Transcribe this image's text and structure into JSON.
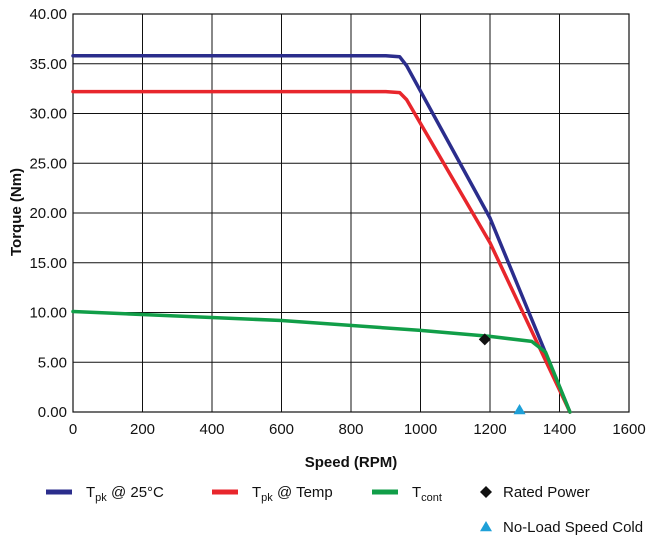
{
  "chart_data": {
    "type": "line",
    "title": "",
    "xlabel": "Speed (RPM)",
    "ylabel": "Torque (Nm)",
    "xlim": [
      0,
      1600
    ],
    "ylim": [
      0,
      40
    ],
    "x_ticks": [
      "0",
      "200",
      "400",
      "600",
      "800",
      "1000",
      "1200",
      "1400",
      "1600"
    ],
    "y_ticks": [
      "0.00",
      "5.00",
      "10.00",
      "15.00",
      "20.00",
      "25.00",
      "30.00",
      "35.00",
      "40.00"
    ],
    "grid": true,
    "legend_position": "bottom",
    "series": [
      {
        "name": "T_pk @ 25°C",
        "legend_main": "T",
        "legend_sub": "pk",
        "legend_tail": " @ 25°C",
        "color": "#2b2d8c",
        "x": [
          0,
          900,
          940,
          960,
          1200,
          1430
        ],
        "y": [
          35.8,
          35.8,
          35.7,
          34.8,
          19.5,
          0
        ]
      },
      {
        "name": "T_pk @ Temp",
        "legend_main": "T",
        "legend_sub": "pk",
        "legend_tail": " @ Temp",
        "color": "#e8262c",
        "x": [
          0,
          900,
          940,
          960,
          1200,
          1430
        ],
        "y": [
          32.2,
          32.2,
          32.1,
          31.4,
          17.0,
          0
        ]
      },
      {
        "name": "T_cont",
        "legend_main": "T",
        "legend_sub": "cont",
        "legend_tail": "",
        "color": "#119e48",
        "x": [
          0,
          600,
          1000,
          1200,
          1320,
          1360,
          1430
        ],
        "y": [
          10.1,
          9.2,
          8.2,
          7.6,
          7.1,
          6.0,
          0
        ]
      }
    ],
    "markers": [
      {
        "name": "Rated Power",
        "symbol": "diamond",
        "color": "#111111",
        "x": 1185,
        "y": 7.3
      },
      {
        "name": "No-Load Speed Cold",
        "symbol": "triangle",
        "color": "#1ea0d8",
        "x": 1285,
        "y": 0
      }
    ]
  }
}
